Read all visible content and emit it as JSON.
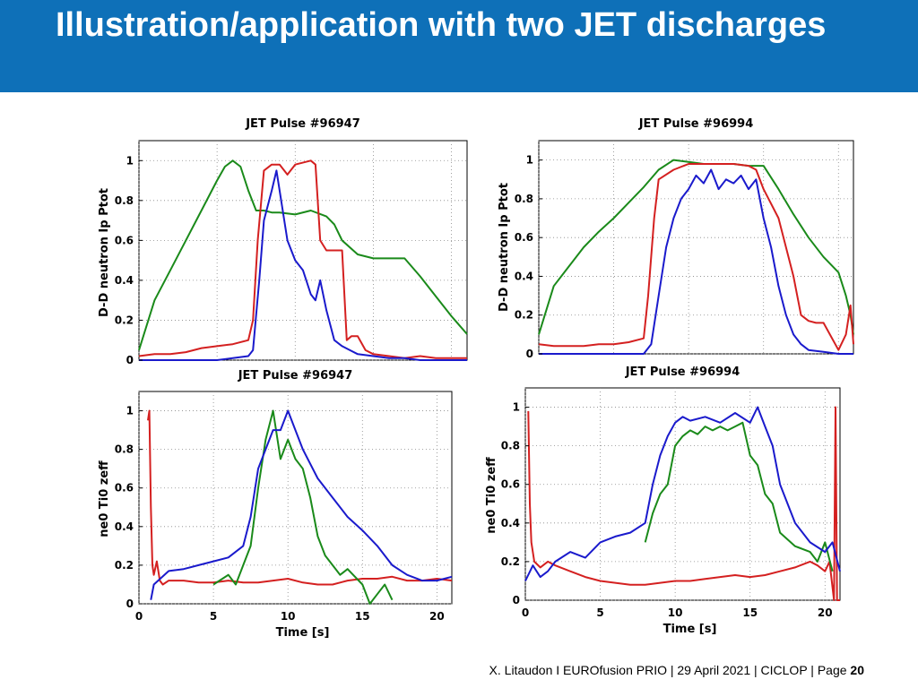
{
  "slide": {
    "title": "Illustration/application with two JET discharges",
    "footer_text": "X. Litaudon I EUROfusion PRIO | 29 April  2021 | CICLOP | Page ",
    "page_number": "20",
    "header_color": "#0e70b8"
  },
  "chart_data": [
    {
      "type": "line",
      "title": "JET Pulse #96947",
      "xlabel": "",
      "ylabel": "D-D neutron Ip Ptot",
      "xlim": [
        0,
        21
      ],
      "ylim": [
        0,
        1.1
      ],
      "yticks": [
        "0",
        "0.2",
        "0.4",
        "0.6",
        "0.8",
        "1"
      ],
      "xticks": [],
      "grid": true,
      "series": [
        {
          "name": "green",
          "color": "#1a8a1a",
          "x": [
            0,
            1,
            2,
            3,
            4,
            5,
            5.5,
            6,
            6.5,
            7,
            7.5,
            8,
            8.5,
            9,
            10,
            11,
            12,
            12.5,
            13,
            14,
            15,
            16,
            17,
            18,
            19,
            20,
            21
          ],
          "y": [
            0.05,
            0.3,
            0.45,
            0.6,
            0.75,
            0.9,
            0.97,
            1.0,
            0.97,
            0.85,
            0.75,
            0.75,
            0.74,
            0.74,
            0.73,
            0.75,
            0.72,
            0.68,
            0.6,
            0.53,
            0.51,
            0.51,
            0.51,
            0.42,
            0.32,
            0.22,
            0.13
          ]
        },
        {
          "name": "red",
          "color": "#d42020",
          "x": [
            0,
            1,
            2,
            3,
            4,
            5,
            6,
            7,
            7.3,
            7.6,
            8,
            8.5,
            9,
            9.5,
            10,
            11,
            11.3,
            11.6,
            12,
            12.5,
            13,
            13.3,
            13.6,
            14,
            14.5,
            15,
            16,
            17,
            18,
            19,
            20,
            21
          ],
          "y": [
            0.02,
            0.03,
            0.03,
            0.04,
            0.06,
            0.07,
            0.08,
            0.1,
            0.2,
            0.6,
            0.95,
            0.98,
            0.98,
            0.93,
            0.98,
            1.0,
            0.98,
            0.6,
            0.55,
            0.55,
            0.55,
            0.1,
            0.12,
            0.12,
            0.05,
            0.03,
            0.02,
            0.01,
            0.02,
            0.01,
            0.01,
            0.01
          ]
        },
        {
          "name": "blue",
          "color": "#1a1acc",
          "x": [
            0,
            1,
            2,
            3,
            4,
            5,
            6,
            7,
            7.3,
            7.7,
            8,
            8.5,
            8.8,
            9,
            9.5,
            10,
            10.5,
            11,
            11.3,
            11.6,
            12,
            12.5,
            13,
            13.5,
            14,
            15,
            16,
            17,
            18,
            19,
            20,
            21
          ],
          "y": [
            0,
            0,
            0,
            0,
            0,
            0,
            0.01,
            0.02,
            0.05,
            0.4,
            0.7,
            0.85,
            0.95,
            0.85,
            0.6,
            0.5,
            0.45,
            0.33,
            0.3,
            0.4,
            0.25,
            0.1,
            0.07,
            0.05,
            0.03,
            0.02,
            0.01,
            0.01,
            0,
            0,
            0,
            0
          ]
        }
      ]
    },
    {
      "type": "line",
      "title": "JET Pulse #96994",
      "xlabel": "",
      "ylabel": "D-D neutron Ip Ptot",
      "xlim": [
        0,
        21
      ],
      "ylim": [
        0,
        1.1
      ],
      "yticks": [
        "0",
        "0.2",
        "0.4",
        "0.6",
        "0.8",
        "1"
      ],
      "xticks": [],
      "grid": true,
      "series": [
        {
          "name": "green",
          "color": "#1a8a1a",
          "x": [
            0,
            1,
            2,
            3,
            4,
            5,
            6,
            7,
            8,
            9,
            10,
            11,
            12,
            13,
            14,
            15,
            16,
            17,
            18,
            19,
            20,
            20.5,
            20.8,
            21
          ],
          "y": [
            0.1,
            0.35,
            0.45,
            0.55,
            0.63,
            0.7,
            0.78,
            0.86,
            0.95,
            1.0,
            0.99,
            0.98,
            0.98,
            0.98,
            0.97,
            0.97,
            0.85,
            0.72,
            0.6,
            0.5,
            0.42,
            0.3,
            0.2,
            0.1
          ]
        },
        {
          "name": "red",
          "color": "#d42020",
          "x": [
            0,
            1,
            2,
            3,
            4,
            5,
            6,
            7,
            7.3,
            7.7,
            8,
            9,
            10,
            11,
            12,
            13,
            14,
            14.5,
            15,
            16,
            17,
            17.5,
            18,
            18.5,
            19,
            20,
            20.5,
            20.8,
            21
          ],
          "y": [
            0.05,
            0.04,
            0.04,
            0.04,
            0.05,
            0.05,
            0.06,
            0.08,
            0.3,
            0.7,
            0.9,
            0.95,
            0.98,
            0.98,
            0.98,
            0.98,
            0.97,
            0.95,
            0.85,
            0.7,
            0.4,
            0.2,
            0.17,
            0.16,
            0.16,
            0.02,
            0.1,
            0.25,
            0.05
          ]
        },
        {
          "name": "blue",
          "color": "#1a1acc",
          "x": [
            0,
            1,
            2,
            3,
            4,
            5,
            6,
            7,
            7.5,
            8,
            8.5,
            9,
            9.5,
            10,
            10.5,
            11,
            11.5,
            12,
            12.5,
            13,
            13.5,
            14,
            14.5,
            15,
            15.5,
            16,
            16.5,
            17,
            17.5,
            18,
            19,
            20,
            21
          ],
          "y": [
            0,
            0,
            0,
            0,
            0,
            0,
            0,
            0,
            0.05,
            0.3,
            0.55,
            0.7,
            0.8,
            0.85,
            0.92,
            0.88,
            0.95,
            0.85,
            0.9,
            0.88,
            0.92,
            0.85,
            0.9,
            0.7,
            0.55,
            0.35,
            0.2,
            0.1,
            0.05,
            0.02,
            0.01,
            0,
            0
          ]
        }
      ]
    },
    {
      "type": "line",
      "title": "JET Pulse #96947",
      "xlabel": "Time [s]",
      "ylabel": "ne0 Ti0 zeff",
      "xlim": [
        0,
        21
      ],
      "ylim": [
        0,
        1.1
      ],
      "yticks": [
        "0",
        "0.2",
        "0.4",
        "0.6",
        "0.8",
        "1"
      ],
      "xticks": [
        "0",
        "5",
        "10",
        "15",
        "20"
      ],
      "grid": true,
      "series": [
        {
          "name": "red",
          "color": "#d42020",
          "x": [
            0.6,
            0.7,
            0.8,
            0.9,
            1,
            1.2,
            1.4,
            1.6,
            2,
            3,
            4,
            5,
            6,
            7,
            8,
            9,
            10,
            11,
            12,
            13,
            14,
            15,
            16,
            17,
            18,
            19,
            20,
            21
          ],
          "y": [
            0.95,
            1.0,
            0.5,
            0.2,
            0.15,
            0.22,
            0.12,
            0.1,
            0.12,
            0.12,
            0.11,
            0.11,
            0.12,
            0.11,
            0.11,
            0.12,
            0.13,
            0.11,
            0.1,
            0.1,
            0.12,
            0.13,
            0.13,
            0.14,
            0.12,
            0.12,
            0.13,
            0.12
          ]
        },
        {
          "name": "green",
          "color": "#1a8a1a",
          "x": [
            5,
            6,
            6.5,
            7,
            7.5,
            8,
            8.5,
            9,
            9.5,
            10,
            10.5,
            11,
            11.5,
            12,
            12.5,
            13,
            13.5,
            14,
            15,
            15.5,
            16,
            16.5,
            17
          ],
          "y": [
            0.1,
            0.15,
            0.1,
            0.2,
            0.3,
            0.6,
            0.85,
            1.0,
            0.75,
            0.85,
            0.75,
            0.7,
            0.55,
            0.35,
            0.25,
            0.2,
            0.15,
            0.18,
            0.1,
            0.0,
            0.05,
            0.1,
            0.02
          ]
        },
        {
          "name": "blue",
          "color": "#1a1acc",
          "x": [
            0.8,
            1,
            2,
            3,
            4,
            5,
            6,
            7,
            7.5,
            8,
            8.5,
            9,
            9.5,
            10,
            10.5,
            11,
            12,
            13,
            14,
            15,
            16,
            17,
            18,
            19,
            20,
            21
          ],
          "y": [
            0.02,
            0.1,
            0.17,
            0.18,
            0.2,
            0.22,
            0.24,
            0.3,
            0.45,
            0.7,
            0.8,
            0.9,
            0.9,
            1.0,
            0.9,
            0.8,
            0.65,
            0.55,
            0.45,
            0.38,
            0.3,
            0.2,
            0.15,
            0.12,
            0.12,
            0.14
          ]
        }
      ]
    },
    {
      "type": "line",
      "title": "JET Pulse #96994",
      "xlabel": "Time [s]",
      "ylabel": "ne0 Ti0 zeff",
      "xlim": [
        0,
        21
      ],
      "ylim": [
        0,
        1.1
      ],
      "yticks": [
        "0",
        "0.2",
        "0.4",
        "0.6",
        "0.8",
        "1"
      ],
      "xticks": [
        "0",
        "5",
        "10",
        "15",
        "20"
      ],
      "grid": true,
      "series": [
        {
          "name": "red",
          "color": "#d42020",
          "x": [
            0.2,
            0.3,
            0.4,
            0.6,
            1,
            1.5,
            2,
            3,
            4,
            5,
            6,
            7,
            8,
            9,
            10,
            11,
            12,
            13,
            14,
            15,
            16,
            17,
            18,
            19,
            19.5,
            20,
            20.3,
            20.6,
            20.7,
            20.8,
            21
          ],
          "y": [
            0.98,
            0.5,
            0.3,
            0.2,
            0.17,
            0.2,
            0.18,
            0.15,
            0.12,
            0.1,
            0.09,
            0.08,
            0.08,
            0.09,
            0.1,
            0.1,
            0.11,
            0.12,
            0.13,
            0.12,
            0.13,
            0.15,
            0.17,
            0.2,
            0.18,
            0.15,
            0.2,
            0.0,
            1.0,
            0.0,
            0.0
          ]
        },
        {
          "name": "green",
          "color": "#1a8a1a",
          "x": [
            8,
            8.5,
            9,
            9.5,
            10,
            10.5,
            11,
            11.5,
            12,
            12.5,
            13,
            13.5,
            14,
            14.5,
            15,
            15.5,
            16,
            16.5,
            17,
            18,
            19,
            19.5,
            20,
            20.5
          ],
          "y": [
            0.3,
            0.45,
            0.55,
            0.6,
            0.8,
            0.85,
            0.88,
            0.86,
            0.9,
            0.88,
            0.9,
            0.88,
            0.9,
            0.92,
            0.75,
            0.7,
            0.55,
            0.5,
            0.35,
            0.28,
            0.25,
            0.2,
            0.3,
            0.15
          ]
        },
        {
          "name": "blue",
          "color": "#1a1acc",
          "x": [
            0,
            0.5,
            1,
            1.5,
            2,
            3,
            4,
            5,
            6,
            7,
            8,
            8.5,
            9,
            9.5,
            10,
            10.5,
            11,
            12,
            13,
            14,
            15,
            15.5,
            16,
            16.5,
            17,
            18,
            19,
            20,
            20.5,
            21
          ],
          "y": [
            0.1,
            0.18,
            0.12,
            0.15,
            0.2,
            0.25,
            0.22,
            0.3,
            0.33,
            0.35,
            0.4,
            0.6,
            0.75,
            0.85,
            0.92,
            0.95,
            0.93,
            0.95,
            0.92,
            0.97,
            0.92,
            1.0,
            0.9,
            0.8,
            0.6,
            0.4,
            0.3,
            0.25,
            0.3,
            0.15
          ]
        }
      ]
    }
  ]
}
